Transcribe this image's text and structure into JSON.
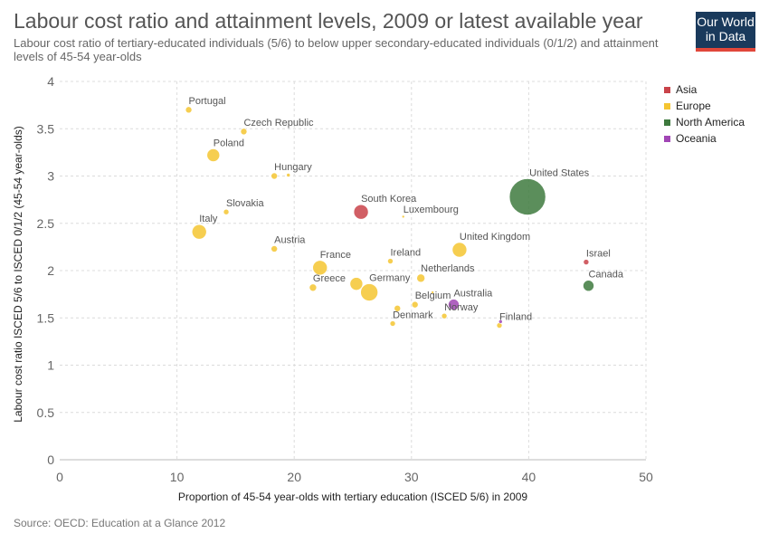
{
  "header": {
    "title": "Labour cost ratio and attainment levels, 2009 or latest available year",
    "subtitle": "Labour cost ratio of tertiary-educated individuals (5/6) to below upper secondary-educated individuals (0/1/2) and attainment levels of 45-54 year-olds"
  },
  "logo": {
    "line1": "Our World",
    "line2": "in Data"
  },
  "footer": {
    "source": "Source: OECD: Education at a Glance 2012"
  },
  "chart_data": {
    "type": "scatter",
    "title": "Labour cost ratio and attainment levels, 2009 or latest available year",
    "xlabel": "Proportion of 45-54 year-olds with tertiary education (ISCED 5/6) in 2009",
    "ylabel": "Labour cost ratio ISCED 5/6 to ISCED 0/1/2 (45-54 year-olds)",
    "xlim": [
      0,
      50
    ],
    "ylim": [
      0,
      4
    ],
    "x_ticks": [
      0,
      10,
      20,
      30,
      40,
      50
    ],
    "y_ticks": [
      0,
      0.5,
      1,
      1.5,
      2,
      2.5,
      3,
      3.5,
      4
    ],
    "grid": true,
    "legend": "right",
    "series": [
      {
        "name": "Asia",
        "color": "#c9434a"
      },
      {
        "name": "Europe",
        "color": "#f5c531"
      },
      {
        "name": "North America",
        "color": "#3e7a3e"
      },
      {
        "name": "Oceania",
        "color": "#a146b5"
      }
    ],
    "points": [
      {
        "label": "Portugal",
        "x": 11.0,
        "y": 3.7,
        "size": 7,
        "series": "Europe"
      },
      {
        "label": "Czech Republic",
        "x": 15.7,
        "y": 3.47,
        "size": 7,
        "series": "Europe"
      },
      {
        "label": "Poland",
        "x": 13.1,
        "y": 3.22,
        "size": 14,
        "series": "Europe"
      },
      {
        "label": "Hungary",
        "x": 18.3,
        "y": 3.0,
        "size": 7,
        "series": "Europe"
      },
      {
        "label": "",
        "x": 19.5,
        "y": 3.01,
        "size": 4,
        "series": "Europe"
      },
      {
        "label": "Slovakia",
        "x": 14.2,
        "y": 2.62,
        "size": 6,
        "series": "Europe"
      },
      {
        "label": "South Korea",
        "x": 25.7,
        "y": 2.62,
        "size": 16,
        "series": "Asia"
      },
      {
        "label": "Luxembourg",
        "x": 29.3,
        "y": 2.57,
        "size": 3,
        "series": "Europe"
      },
      {
        "label": "United States",
        "x": 39.9,
        "y": 2.78,
        "size": 40,
        "series": "North America"
      },
      {
        "label": "Italy",
        "x": 11.9,
        "y": 2.41,
        "size": 16,
        "series": "Europe"
      },
      {
        "label": "Austria",
        "x": 18.3,
        "y": 2.23,
        "size": 7,
        "series": "Europe"
      },
      {
        "label": "United Kingdom",
        "x": 34.1,
        "y": 2.22,
        "size": 16,
        "series": "Europe"
      },
      {
        "label": "Israel",
        "x": 44.9,
        "y": 2.09,
        "size": 6,
        "series": "Asia"
      },
      {
        "label": "France",
        "x": 22.2,
        "y": 2.03,
        "size": 16,
        "series": "Europe"
      },
      {
        "label": "Ireland",
        "x": 28.2,
        "y": 2.1,
        "size": 6,
        "series": "Europe"
      },
      {
        "label": "Netherlands",
        "x": 30.8,
        "y": 1.92,
        "size": 9,
        "series": "Europe"
      },
      {
        "label": "Canada",
        "x": 45.1,
        "y": 1.84,
        "size": 12,
        "series": "North America"
      },
      {
        "label": "Greece",
        "x": 21.6,
        "y": 1.82,
        "size": 8,
        "series": "Europe"
      },
      {
        "label": "",
        "x": 25.3,
        "y": 1.86,
        "size": 14,
        "series": "Europe"
      },
      {
        "label": "Germany",
        "x": 26.4,
        "y": 1.77,
        "size": 19,
        "series": "Europe"
      },
      {
        "label": "",
        "x": 31.8,
        "y": 1.77,
        "size": 3,
        "series": "Europe"
      },
      {
        "label": "Belgium",
        "x": 30.3,
        "y": 1.64,
        "size": 7,
        "series": "Europe"
      },
      {
        "label": "Australia",
        "x": 33.6,
        "y": 1.64,
        "size": 12,
        "series": "Oceania"
      },
      {
        "label": "",
        "x": 28.8,
        "y": 1.6,
        "size": 7,
        "series": "Europe"
      },
      {
        "label": "Norway",
        "x": 32.8,
        "y": 1.52,
        "size": 6,
        "series": "Europe"
      },
      {
        "label": "Denmark",
        "x": 28.4,
        "y": 1.44,
        "size": 6,
        "series": "Europe"
      },
      {
        "label": "Finland",
        "x": 37.5,
        "y": 1.42,
        "size": 6,
        "series": "Europe"
      },
      {
        "label": "",
        "x": 37.6,
        "y": 1.46,
        "size": 4,
        "series": "Oceania"
      }
    ]
  }
}
